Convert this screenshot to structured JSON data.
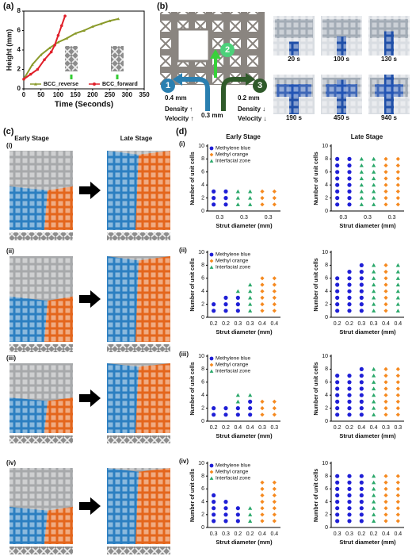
{
  "figure": {
    "panel_labels": [
      "(a)",
      "(b)",
      "(c)",
      "(d)"
    ],
    "b": {
      "numbers": [
        "1",
        "2",
        "3"
      ],
      "widths": [
        "0.4 mm",
        "0.3 mm",
        "0.2 mm"
      ],
      "left_note": [
        "Density ↑",
        "Velocity ↑"
      ],
      "right_note": [
        "Density ↓",
        "Velocity ↓"
      ],
      "times": [
        "20 s",
        "100 s",
        "130 s",
        "190 s",
        "450 s",
        "940 s"
      ]
    },
    "c": {
      "rows": [
        "(i)",
        "(ii)",
        "(iii)",
        "(iv)"
      ],
      "early": "Early Stage",
      "late": "Late Stage"
    },
    "d": {
      "rows": [
        "(i)",
        "(ii)",
        "(iii)",
        "(iv)"
      ],
      "early": "Early Stage",
      "late": "Late Stage"
    }
  },
  "chart_data": [
    {
      "type": "line",
      "xlabel": "Time (Seconds)",
      "ylabel": "Height (mm)",
      "xlim": [
        0,
        350
      ],
      "xticks": [
        0,
        50,
        100,
        150,
        200,
        250,
        300,
        350
      ],
      "ylim": [
        0,
        8
      ],
      "yticks": [
        0,
        2,
        4,
        6,
        8
      ],
      "legend": "lower center",
      "series": [
        {
          "name": "BCC_reverse",
          "color": "#8a9a2a",
          "marker": "triangle",
          "x": [
            0,
            25,
            50,
            75,
            100,
            125,
            150,
            175,
            200,
            225,
            250,
            275
          ],
          "values": [
            1,
            2.5,
            3.5,
            4.2,
            4.8,
            5.2,
            5.7,
            6.0,
            6.4,
            6.7,
            7.0,
            7.2
          ]
        },
        {
          "name": "BCC_forward",
          "color": "#e0202a",
          "marker": "circle",
          "x": [
            0,
            20,
            40,
            60,
            80,
            90,
            100,
            110,
            120
          ],
          "values": [
            1,
            1.5,
            2,
            3,
            3.8,
            4.5,
            5.5,
            6.5,
            7.5
          ]
        }
      ]
    },
    {
      "type": "dot-stack",
      "xlabel": "Strut diameter (mm)",
      "ylabel": "Number of unit cells",
      "ylim": [
        0,
        10
      ],
      "yticks": [
        0,
        2,
        4,
        6,
        8,
        10
      ],
      "legend": "upper left",
      "categories": [
        "0.3",
        null,
        "0.3",
        null,
        "0.3",
        null
      ],
      "series": [
        {
          "name": "Methylene blue",
          "color": "#1f1fd6",
          "marker": "circle",
          "values": [
            3,
            3,
            null,
            null,
            null,
            null
          ]
        },
        {
          "name": "Methyl orange",
          "color": "#f5891f",
          "marker": "diamond",
          "values": [
            null,
            null,
            null,
            null,
            3,
            3
          ]
        },
        {
          "name": "Interfacial zone",
          "color": "#2aa86a",
          "marker": "triangle",
          "values": [
            null,
            null,
            3,
            3,
            null,
            null
          ]
        }
      ]
    },
    {
      "type": "dot-stack",
      "xlabel": "Strut diameter (mm)",
      "ylabel": "Number of unit cells",
      "ylim": [
        0,
        10
      ],
      "yticks": [
        0,
        2,
        4,
        6,
        8,
        10
      ],
      "categories": [
        "0.3",
        null,
        "0.3",
        null,
        "0.3",
        null
      ],
      "series": [
        {
          "color": "#1f1fd6",
          "marker": "circle",
          "values": [
            8,
            8,
            null,
            null,
            null,
            null
          ]
        },
        {
          "color": "#f5891f",
          "marker": "diamond",
          "values": [
            null,
            null,
            null,
            null,
            8,
            8
          ]
        },
        {
          "color": "#2aa86a",
          "marker": "triangle",
          "values": [
            null,
            null,
            8,
            8,
            null,
            null
          ]
        }
      ]
    },
    {
      "type": "dot-stack",
      "xlabel": "Strut diameter (mm)",
      "ylabel": "Number of unit cells",
      "ylim": [
        0,
        10
      ],
      "yticks": [
        0,
        2,
        4,
        6,
        8,
        10
      ],
      "legend": "upper left",
      "categories": [
        "0.2",
        "0.2",
        "0.3",
        "0.3",
        "0.4",
        "0.4"
      ],
      "series": [
        {
          "name": "Methylene blue",
          "color": "#1f1fd6",
          "marker": "circle",
          "values": [
            2,
            3,
            3,
            null,
            null,
            null
          ]
        },
        {
          "name": "Methyl orange",
          "color": "#f5891f",
          "marker": "diamond",
          "values": [
            null,
            null,
            null,
            null,
            6,
            6
          ]
        },
        {
          "name": "Interfacial zone",
          "color": "#2aa86a",
          "marker": "triangle",
          "values": [
            null,
            null,
            1,
            5,
            null,
            null
          ]
        }
      ]
    },
    {
      "type": "dot-stack",
      "xlabel": "Strut diameter (mm)",
      "ylabel": "Number of unit cells",
      "ylim": [
        0,
        10
      ],
      "yticks": [
        0,
        2,
        4,
        6,
        8,
        10
      ],
      "categories": [
        "0.2",
        "0.2",
        "0.3",
        "0.3",
        "0.4",
        "0.4"
      ],
      "series": [
        {
          "color": "#1f1fd6",
          "marker": "circle",
          "values": [
            6,
            7,
            8,
            null,
            null,
            null
          ]
        },
        {
          "color": "#f5891f",
          "marker": "diamond",
          "values": [
            null,
            null,
            null,
            null,
            8,
            null
          ]
        },
        {
          "color": "#2aa86a",
          "marker": "triangle",
          "values": [
            null,
            null,
            null,
            8,
            null,
            8
          ]
        }
      ]
    },
    {
      "type": "dot-stack",
      "xlabel": "Strut diameter (mm)",
      "ylabel": "Number of unit cells",
      "ylim": [
        0,
        10
      ],
      "yticks": [
        0,
        2,
        4,
        6,
        8,
        10
      ],
      "legend": "upper left",
      "categories": [
        "0.2",
        "0.2",
        "0.4",
        "0.4",
        "0.3",
        "0.3"
      ],
      "series": [
        {
          "name": "Methylene blue",
          "color": "#1f1fd6",
          "marker": "circle",
          "values": [
            2,
            2,
            2,
            3,
            null,
            null
          ]
        },
        {
          "name": "Methyl orange",
          "color": "#f5891f",
          "marker": "diamond",
          "values": [
            null,
            null,
            null,
            null,
            3,
            3
          ]
        },
        {
          "name": "Interfacial zone",
          "color": "#2aa86a",
          "marker": "triangle",
          "values": [
            null,
            null,
            2,
            1,
            null,
            null
          ]
        }
      ]
    },
    {
      "type": "dot-stack",
      "xlabel": "Strut diameter (mm)",
      "ylabel": "Number of unit cells",
      "ylim": [
        0,
        10
      ],
      "yticks": [
        0,
        2,
        4,
        6,
        8,
        10
      ],
      "categories": [
        "0.2",
        "0.2",
        "0.4",
        "0.4",
        "0.3",
        "0.3"
      ],
      "series": [
        {
          "color": "#1f1fd6",
          "marker": "circle",
          "values": [
            7,
            7,
            8,
            null,
            null,
            null
          ]
        },
        {
          "color": "#f5891f",
          "marker": "diamond",
          "values": [
            null,
            null,
            null,
            null,
            8,
            8
          ]
        },
        {
          "color": "#2aa86a",
          "marker": "triangle",
          "values": [
            null,
            null,
            null,
            8,
            null,
            null
          ]
        }
      ]
    },
    {
      "type": "dot-stack",
      "xlabel": "Strut diameter (mm)",
      "ylabel": "Number of unit cells",
      "ylim": [
        0,
        10
      ],
      "yticks": [
        0,
        2,
        4,
        6,
        8,
        10
      ],
      "legend": "upper left",
      "categories": [
        "0.3",
        "0.3",
        "0.2",
        "0.2",
        "0.4",
        "0.4"
      ],
      "series": [
        {
          "name": "Methylene blue",
          "color": "#1f1fd6",
          "marker": "circle",
          "values": [
            5,
            4,
            3,
            null,
            null,
            null
          ]
        },
        {
          "name": "Methyl orange",
          "color": "#f5891f",
          "marker": "diamond",
          "values": [
            null,
            null,
            null,
            null,
            7,
            7
          ]
        },
        {
          "name": "Interfacial zone",
          "color": "#2aa86a",
          "marker": "triangle",
          "values": [
            null,
            null,
            null,
            3,
            null,
            null
          ]
        }
      ]
    },
    {
      "type": "dot-stack",
      "xlabel": "Strut diameter (mm)",
      "ylabel": "Number of unit cells",
      "ylim": [
        0,
        10
      ],
      "yticks": [
        0,
        2,
        4,
        6,
        8,
        10
      ],
      "categories": [
        "0.3",
        "0.3",
        "0.2",
        "0.2",
        "0.4",
        "0.4"
      ],
      "series": [
        {
          "color": "#1f1fd6",
          "marker": "circle",
          "values": [
            8,
            8,
            8,
            null,
            null,
            null
          ]
        },
        {
          "color": "#f5891f",
          "marker": "diamond",
          "values": [
            null,
            null,
            null,
            null,
            8,
            8
          ]
        },
        {
          "color": "#2aa86a",
          "marker": "triangle",
          "values": [
            null,
            null,
            null,
            8,
            null,
            null
          ]
        }
      ]
    }
  ]
}
